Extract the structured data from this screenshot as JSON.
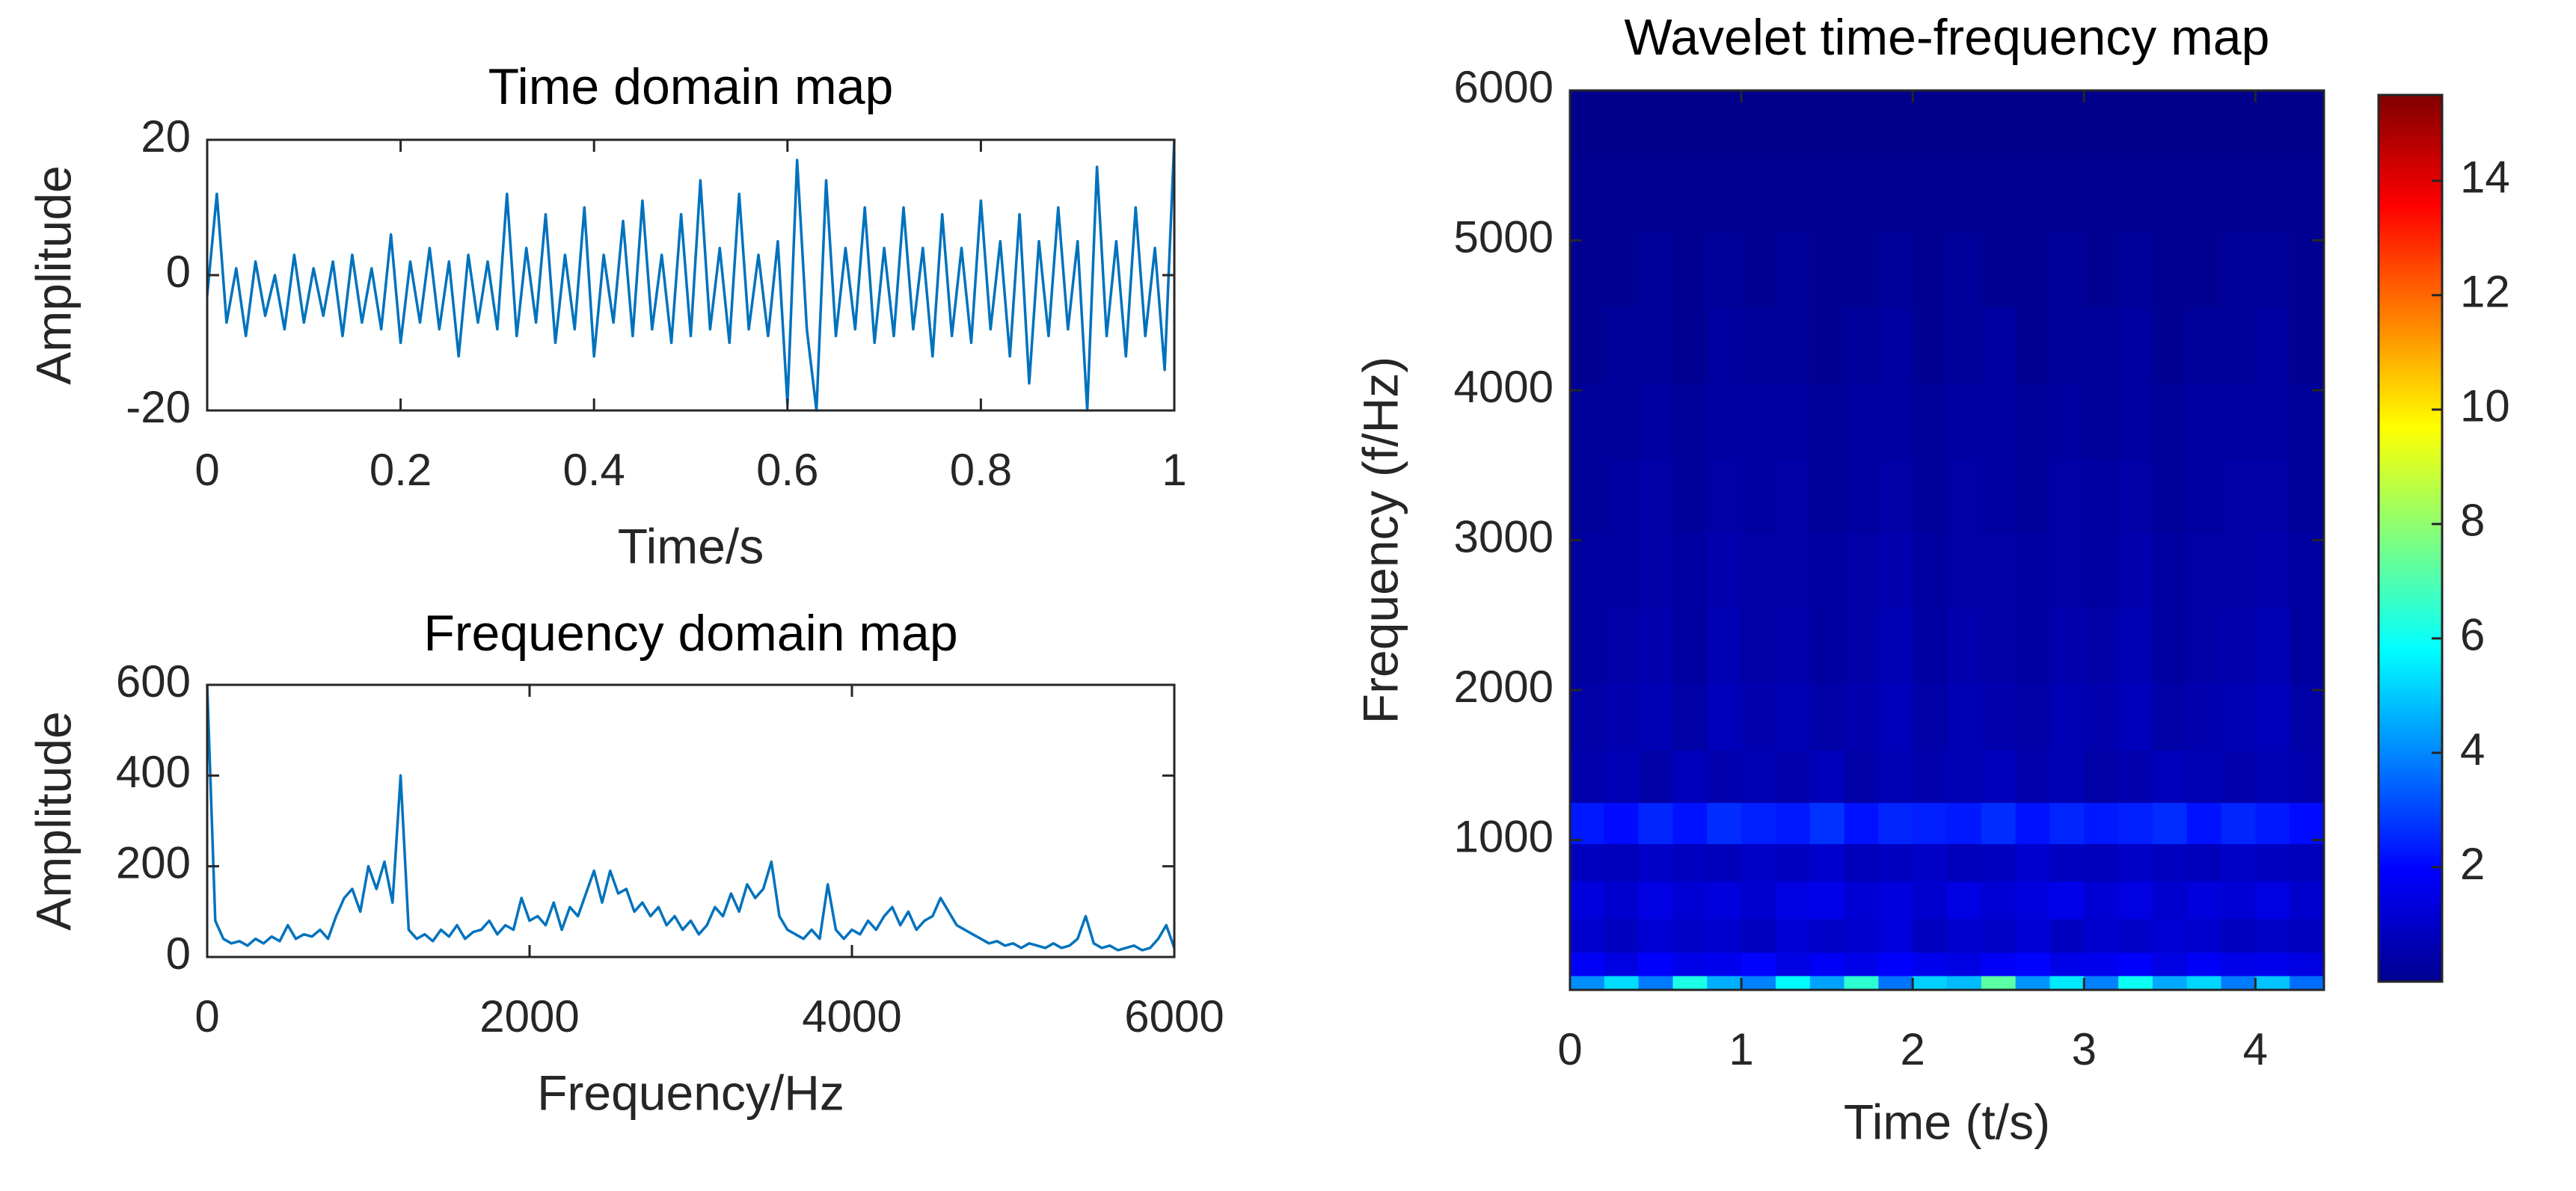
{
  "chart_data": [
    {
      "type": "line",
      "title": "Time domain map",
      "xlabel": "Time/s",
      "ylabel": "Amplitude",
      "x": [
        0,
        0.01,
        0.02,
        0.03,
        0.04,
        0.05,
        0.06,
        0.07,
        0.08,
        0.09,
        0.1,
        0.11,
        0.12,
        0.13,
        0.14,
        0.15,
        0.16,
        0.17,
        0.18,
        0.19,
        0.2,
        0.21,
        0.22,
        0.23,
        0.24,
        0.25,
        0.26,
        0.27,
        0.28,
        0.29,
        0.3,
        0.31,
        0.32,
        0.33,
        0.34,
        0.35,
        0.36,
        0.37,
        0.38,
        0.39,
        0.4,
        0.41,
        0.42,
        0.43,
        0.44,
        0.45,
        0.46,
        0.47,
        0.48,
        0.49,
        0.5,
        0.51,
        0.52,
        0.53,
        0.54,
        0.55,
        0.56,
        0.57,
        0.58,
        0.59,
        0.6,
        0.61,
        0.62,
        0.63,
        0.64,
        0.65,
        0.66,
        0.67,
        0.68,
        0.69,
        0.7,
        0.71,
        0.72,
        0.73,
        0.74,
        0.75,
        0.76,
        0.77,
        0.78,
        0.79,
        0.8,
        0.81,
        0.82,
        0.83,
        0.84,
        0.85,
        0.86,
        0.87,
        0.88,
        0.89,
        0.9,
        0.91,
        0.92,
        0.93,
        0.94,
        0.95,
        0.96,
        0.97,
        0.98,
        0.99,
        1
      ],
      "series": [
        {
          "color": "#0072bd",
          "values": [
            -3,
            12,
            -7,
            1,
            -9,
            2,
            -6,
            0,
            -8,
            3,
            -7,
            1,
            -6,
            2,
            -9,
            3,
            -7,
            1,
            -8,
            6,
            -10,
            2,
            -7,
            4,
            -8,
            2,
            -12,
            3,
            -7,
            2,
            -8,
            12,
            -9,
            4,
            -7,
            9,
            -10,
            3,
            -8,
            10,
            -12,
            3,
            -7,
            8,
            -9,
            11,
            -8,
            3,
            -10,
            9,
            -9,
            14,
            -8,
            4,
            -10,
            12,
            -8,
            3,
            -9,
            5,
            -19,
            17,
            -8,
            -20,
            14,
            -9,
            4,
            -8,
            10,
            -10,
            4,
            -9,
            10,
            -8,
            4,
            -12,
            9,
            -9,
            4,
            -10,
            11,
            -8,
            5,
            -12,
            9,
            -16,
            5,
            -9,
            10,
            -8,
            5,
            -20,
            16,
            -9,
            5,
            -12,
            10,
            -9,
            4,
            -14,
            20
          ]
        }
      ],
      "xlim": [
        0,
        1
      ],
      "xticks": [
        0,
        0.2,
        0.4,
        0.6,
        0.8,
        1
      ],
      "ylim": [
        -20,
        20
      ],
      "yticks": [
        -20,
        0,
        20
      ]
    },
    {
      "type": "line",
      "title": "Frequency domain map",
      "xlabel": "Frequency/Hz",
      "ylabel": "Amplitude",
      "x": [
        0,
        50,
        100,
        150,
        200,
        250,
        300,
        350,
        400,
        450,
        500,
        550,
        600,
        650,
        700,
        750,
        800,
        850,
        900,
        950,
        1000,
        1050,
        1100,
        1150,
        1200,
        1250,
        1300,
        1350,
        1400,
        1450,
        1500,
        1550,
        1600,
        1650,
        1700,
        1750,
        1800,
        1850,
        1900,
        1950,
        2000,
        2050,
        2100,
        2150,
        2200,
        2250,
        2300,
        2350,
        2400,
        2450,
        2500,
        2550,
        2600,
        2650,
        2700,
        2750,
        2800,
        2850,
        2900,
        2950,
        3000,
        3050,
        3100,
        3150,
        3200,
        3250,
        3300,
        3350,
        3400,
        3450,
        3500,
        3550,
        3600,
        3650,
        3700,
        3750,
        3800,
        3850,
        3900,
        3950,
        4000,
        4050,
        4100,
        4150,
        4200,
        4250,
        4300,
        4350,
        4400,
        4450,
        4500,
        4550,
        4600,
        4650,
        4700,
        4750,
        4800,
        4850,
        4900,
        4950,
        5000,
        5050,
        5100,
        5150,
        5200,
        5250,
        5300,
        5350,
        5400,
        5450,
        5500,
        5550,
        5600,
        5650,
        5700,
        5750,
        5800,
        5850,
        5900,
        5950,
        6000
      ],
      "series": [
        {
          "color": "#0072bd",
          "values": [
            600,
            80,
            40,
            30,
            35,
            25,
            40,
            30,
            45,
            35,
            70,
            40,
            50,
            45,
            60,
            40,
            90,
            130,
            150,
            100,
            200,
            150,
            210,
            120,
            400,
            60,
            40,
            50,
            35,
            60,
            45,
            70,
            40,
            55,
            60,
            80,
            50,
            70,
            60,
            130,
            80,
            90,
            70,
            120,
            60,
            110,
            90,
            140,
            190,
            120,
            190,
            140,
            150,
            100,
            120,
            90,
            110,
            70,
            90,
            60,
            80,
            50,
            70,
            110,
            90,
            140,
            100,
            160,
            130,
            150,
            210,
            90,
            60,
            50,
            40,
            60,
            40,
            160,
            60,
            40,
            60,
            50,
            80,
            60,
            90,
            110,
            70,
            100,
            60,
            80,
            90,
            130,
            100,
            70,
            60,
            50,
            40,
            30,
            35,
            25,
            30,
            20,
            30,
            25,
            20,
            30,
            20,
            25,
            40,
            90,
            30,
            20,
            25,
            15,
            20,
            25,
            15,
            20,
            40,
            70,
            20
          ]
        }
      ],
      "xlim": [
        0,
        6000
      ],
      "xticks": [
        0,
        2000,
        4000,
        6000
      ],
      "ylim": [
        0,
        600
      ],
      "yticks": [
        0,
        200,
        400,
        600
      ]
    },
    {
      "type": "heatmap",
      "title": "Wavelet time-frequency map",
      "xlabel": "Time (t/s)",
      "ylabel": "Frequency (f/Hz)",
      "colormap": "jet",
      "x": [
        0.1,
        0.3,
        0.5,
        0.7,
        0.9,
        1.1,
        1.3,
        1.5,
        1.7,
        1.9,
        2.1,
        2.3,
        2.5,
        2.7,
        2.9,
        3.1,
        3.3,
        3.5,
        3.7,
        3.9,
        4.1,
        4.3
      ],
      "y": [
        40,
        150,
        350,
        600,
        850,
        1100,
        1400,
        1800,
        2300,
        2800,
        3300,
        3800,
        4300,
        4800,
        5300,
        5800
      ],
      "z": [
        [
          4.1,
          5.3,
          3.8,
          6.2,
          4.6,
          3.9,
          5.8,
          4.4,
          6.5,
          3.7,
          5.1,
          4.8,
          7.2,
          4.2,
          5.5,
          3.9,
          6.0,
          4.5,
          5.2,
          3.8,
          4.9,
          3.6
        ],
        [
          1.8,
          1.5,
          1.9,
          1.6,
          1.7,
          2.0,
          1.5,
          1.8,
          1.6,
          1.9,
          1.7,
          1.5,
          1.8,
          2.0,
          1.6,
          1.7,
          1.9,
          1.5,
          1.8,
          1.6,
          1.7,
          1.5
        ],
        [
          1.2,
          1.0,
          1.3,
          1.1,
          1.2,
          1.0,
          1.3,
          1.1,
          1.2,
          1.4,
          1.0,
          1.2,
          1.1,
          1.3,
          1.0,
          1.2,
          1.1,
          1.3,
          1.2,
          1.0,
          1.1,
          1.0
        ],
        [
          1.4,
          1.2,
          1.5,
          1.3,
          1.4,
          1.2,
          1.5,
          1.6,
          1.3,
          1.4,
          1.2,
          1.5,
          1.3,
          1.4,
          1.6,
          1.3,
          1.5,
          1.2,
          1.4,
          1.3,
          1.5,
          1.2
        ],
        [
          1.0,
          0.9,
          1.1,
          1.0,
          0.9,
          1.1,
          1.0,
          1.2,
          0.9,
          1.0,
          1.1,
          0.9,
          1.0,
          1.2,
          1.0,
          0.9,
          1.1,
          1.0,
          0.9,
          1.1,
          1.0,
          0.9
        ],
        [
          2.3,
          2.1,
          2.5,
          2.2,
          2.6,
          2.4,
          2.3,
          2.7,
          2.2,
          2.5,
          2.4,
          2.3,
          2.6,
          2.2,
          2.5,
          2.3,
          2.4,
          2.6,
          2.2,
          2.5,
          2.3,
          2.1
        ],
        [
          0.7,
          0.8,
          0.6,
          0.9,
          0.7,
          0.8,
          0.7,
          0.9,
          0.6,
          0.8,
          0.7,
          0.8,
          0.9,
          0.7,
          0.8,
          0.6,
          0.7,
          0.9,
          0.8,
          0.7,
          0.8,
          0.7
        ],
        [
          0.6,
          0.7,
          0.8,
          0.6,
          0.9,
          0.7,
          0.8,
          0.6,
          0.7,
          0.9,
          0.6,
          0.8,
          0.7,
          0.6,
          0.8,
          0.7,
          0.9,
          0.6,
          0.7,
          0.8,
          0.9,
          0.6
        ],
        [
          0.5,
          0.6,
          0.7,
          0.5,
          0.8,
          0.6,
          0.7,
          0.5,
          0.6,
          0.8,
          0.5,
          0.7,
          0.6,
          0.5,
          0.7,
          0.6,
          0.8,
          0.5,
          0.6,
          0.7,
          0.8,
          0.5
        ],
        [
          0.5,
          0.5,
          0.6,
          0.5,
          0.7,
          0.6,
          0.6,
          0.5,
          0.6,
          0.7,
          0.5,
          0.6,
          0.6,
          0.5,
          0.6,
          0.5,
          0.7,
          0.5,
          0.6,
          0.6,
          0.7,
          0.5
        ],
        [
          0.4,
          0.5,
          0.6,
          0.4,
          0.6,
          0.5,
          0.6,
          0.4,
          0.5,
          0.6,
          0.4,
          0.6,
          0.5,
          0.4,
          0.6,
          0.5,
          0.6,
          0.4,
          0.5,
          0.6,
          0.6,
          0.4
        ],
        [
          0.4,
          0.4,
          0.5,
          0.4,
          0.5,
          0.5,
          0.5,
          0.4,
          0.5,
          0.5,
          0.4,
          0.5,
          0.5,
          0.4,
          0.5,
          0.4,
          0.5,
          0.4,
          0.5,
          0.5,
          0.5,
          0.4
        ],
        [
          0.3,
          0.4,
          0.4,
          0.3,
          0.5,
          0.4,
          0.4,
          0.3,
          0.4,
          0.5,
          0.3,
          0.4,
          0.5,
          0.3,
          0.4,
          0.4,
          0.5,
          0.3,
          0.4,
          0.4,
          0.5,
          0.3
        ],
        [
          0.3,
          0.3,
          0.4,
          0.3,
          0.4,
          0.3,
          0.4,
          0.3,
          0.3,
          0.4,
          0.3,
          0.4,
          0.3,
          0.3,
          0.4,
          0.3,
          0.4,
          0.3,
          0.3,
          0.4,
          0.4,
          0.3
        ],
        [
          0.3,
          0.3,
          0.3,
          0.3,
          0.3,
          0.3,
          0.3,
          0.3,
          0.3,
          0.3,
          0.3,
          0.3,
          0.3,
          0.3,
          0.3,
          0.3,
          0.3,
          0.3,
          0.3,
          0.3,
          0.3,
          0.3
        ],
        [
          0.2,
          0.2,
          0.2,
          0.2,
          0.2,
          0.2,
          0.2,
          0.2,
          0.2,
          0.2,
          0.2,
          0.2,
          0.2,
          0.2,
          0.2,
          0.2,
          0.2,
          0.2,
          0.2,
          0.2,
          0.2,
          0.2
        ]
      ],
      "xlim": [
        0,
        4.4
      ],
      "xticks": [
        0,
        1,
        2,
        3,
        4
      ],
      "ylim": [
        0,
        6000
      ],
      "yticks": [
        1000,
        2000,
        3000,
        4000,
        5000,
        6000
      ],
      "clim": [
        0,
        15.5
      ],
      "cticks": [
        2,
        4,
        6,
        8,
        10,
        12,
        14
      ]
    }
  ]
}
